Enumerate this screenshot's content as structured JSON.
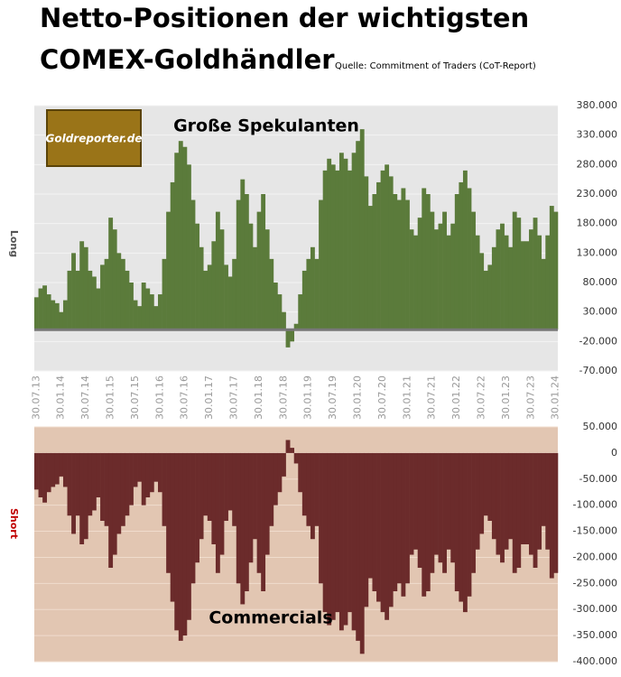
{
  "header": {
    "title": [
      "Netto-Positionen der wichtigsten",
      "COMEX-Goldhändler"
    ],
    "source": "Quelle: Commitment of Traders (CoT-Report)",
    "logo": "Goldreporter.de"
  },
  "chart_data": [
    {
      "type": "bar",
      "y_label": "Long",
      "annotation": "Große Spekulanten",
      "color": "#5b7b3b",
      "categories": [
        "30.07.13",
        null,
        null,
        null,
        null,
        null,
        "30.01.14",
        null,
        null,
        null,
        null,
        null,
        "30.07.14",
        null,
        null,
        null,
        null,
        null,
        "30.01.15",
        null,
        null,
        null,
        null,
        null,
        "30.07.15",
        null,
        null,
        null,
        null,
        null,
        "30.01.16",
        null,
        null,
        null,
        null,
        null,
        "30.07.16",
        null,
        null,
        null,
        null,
        null,
        "30.01.17",
        null,
        null,
        null,
        null,
        null,
        "30.07.17",
        null,
        null,
        null,
        null,
        null,
        "30.01.18",
        null,
        null,
        null,
        null,
        null,
        "30.07.18",
        null,
        null,
        null,
        null,
        null,
        "30.01.19",
        null,
        null,
        null,
        null,
        null,
        "30.07.19",
        null,
        null,
        null,
        null,
        null,
        "30.01.20",
        null,
        null,
        null,
        null,
        null,
        "30.07.20",
        null,
        null,
        null,
        null,
        null,
        "30.01.21",
        null,
        null,
        null,
        null,
        null,
        "30.07.21",
        null,
        null,
        null,
        null,
        null,
        "30.01.22",
        null,
        null,
        null,
        null,
        null,
        "30.07.22",
        null,
        null,
        null,
        null,
        null,
        "30.01.23",
        null,
        null,
        null,
        null,
        null,
        "30.07.23",
        null,
        null,
        null,
        null,
        null,
        "30.01.24"
      ],
      "values": [
        55000,
        70000,
        75000,
        60000,
        50000,
        45000,
        30000,
        50000,
        100000,
        130000,
        100000,
        150000,
        140000,
        100000,
        90000,
        70000,
        110000,
        120000,
        190000,
        170000,
        130000,
        120000,
        100000,
        80000,
        50000,
        40000,
        80000,
        70000,
        60000,
        40000,
        60000,
        120000,
        200000,
        250000,
        300000,
        320000,
        310000,
        280000,
        220000,
        180000,
        140000,
        100000,
        110000,
        150000,
        200000,
        170000,
        110000,
        90000,
        120000,
        220000,
        255000,
        230000,
        180000,
        140000,
        200000,
        230000,
        170000,
        120000,
        80000,
        60000,
        30000,
        -30000,
        -20000,
        10000,
        60000,
        100000,
        120000,
        140000,
        120000,
        220000,
        270000,
        290000,
        280000,
        270000,
        300000,
        290000,
        270000,
        300000,
        320000,
        340000,
        260000,
        210000,
        230000,
        250000,
        270000,
        280000,
        260000,
        230000,
        220000,
        240000,
        220000,
        170000,
        160000,
        190000,
        240000,
        230000,
        200000,
        170000,
        180000,
        200000,
        160000,
        180000,
        230000,
        250000,
        270000,
        240000,
        200000,
        160000,
        130000,
        100000,
        110000,
        140000,
        170000,
        180000,
        160000,
        140000,
        200000,
        190000,
        150000,
        150000,
        170000,
        190000,
        160000,
        120000,
        160000,
        210000,
        200000
      ],
      "ylim": [
        -70000,
        380000
      ],
      "yticks": [
        {
          "value": -70000,
          "label": "-70.000"
        },
        {
          "value": -20000,
          "label": "-20.000"
        },
        {
          "value": 30000,
          "label": "30.000"
        },
        {
          "value": 80000,
          "label": "80.000"
        },
        {
          "value": 130000,
          "label": "130.000"
        },
        {
          "value": 180000,
          "label": "180.000"
        },
        {
          "value": 230000,
          "label": "230.000"
        },
        {
          "value": 280000,
          "label": "280.000"
        },
        {
          "value": 330000,
          "label": "330.000"
        },
        {
          "value": 380000,
          "label": "380.000"
        }
      ],
      "grid": true
    },
    {
      "type": "bar",
      "y_label": "Short",
      "annotation": "Commercials",
      "color": "#6b2b2b",
      "values": [
        -70000,
        -85000,
        -95000,
        -75000,
        -65000,
        -60000,
        -45000,
        -65000,
        -120000,
        -155000,
        -120000,
        -175000,
        -165000,
        -120000,
        -110000,
        -85000,
        -130000,
        -140000,
        -220000,
        -195000,
        -155000,
        -140000,
        -120000,
        -100000,
        -65000,
        -55000,
        -100000,
        -85000,
        -75000,
        -55000,
        -75000,
        -140000,
        -230000,
        -285000,
        -340000,
        -360000,
        -350000,
        -320000,
        -250000,
        -210000,
        -165000,
        -120000,
        -130000,
        -175000,
        -230000,
        -195000,
        -130000,
        -110000,
        -140000,
        -250000,
        -290000,
        -265000,
        -210000,
        -165000,
        -230000,
        -265000,
        -195000,
        -140000,
        -100000,
        -75000,
        -45000,
        25000,
        10000,
        -20000,
        -75000,
        -120000,
        -140000,
        -165000,
        -140000,
        -250000,
        -305000,
        -330000,
        -320000,
        -305000,
        -340000,
        -330000,
        -305000,
        -340000,
        -360000,
        -385000,
        -295000,
        -240000,
        -265000,
        -285000,
        -305000,
        -320000,
        -295000,
        -265000,
        -250000,
        -275000,
        -250000,
        -195000,
        -185000,
        -220000,
        -275000,
        -265000,
        -230000,
        -195000,
        -210000,
        -230000,
        -185000,
        -210000,
        -265000,
        -285000,
        -305000,
        -275000,
        -230000,
        -185000,
        -155000,
        -120000,
        -130000,
        -165000,
        -195000,
        -210000,
        -185000,
        -165000,
        -230000,
        -220000,
        -175000,
        -175000,
        -195000,
        -220000,
        -185000,
        -140000,
        -185000,
        -240000,
        -230000
      ],
      "ylim": [
        -400000,
        50000
      ],
      "yticks": [
        {
          "value": -400000,
          "label": "-400.000"
        },
        {
          "value": -350000,
          "label": "-350.000"
        },
        {
          "value": -300000,
          "label": "-300.000"
        },
        {
          "value": -250000,
          "label": "-250.000"
        },
        {
          "value": -200000,
          "label": "-200.000"
        },
        {
          "value": -150000,
          "label": "-150.000"
        },
        {
          "value": -100000,
          "label": "-100.000"
        },
        {
          "value": -50000,
          "label": "-50.000"
        },
        0,
        {
          "value": 50000,
          "label": "50.000"
        }
      ],
      "grid": true
    }
  ]
}
